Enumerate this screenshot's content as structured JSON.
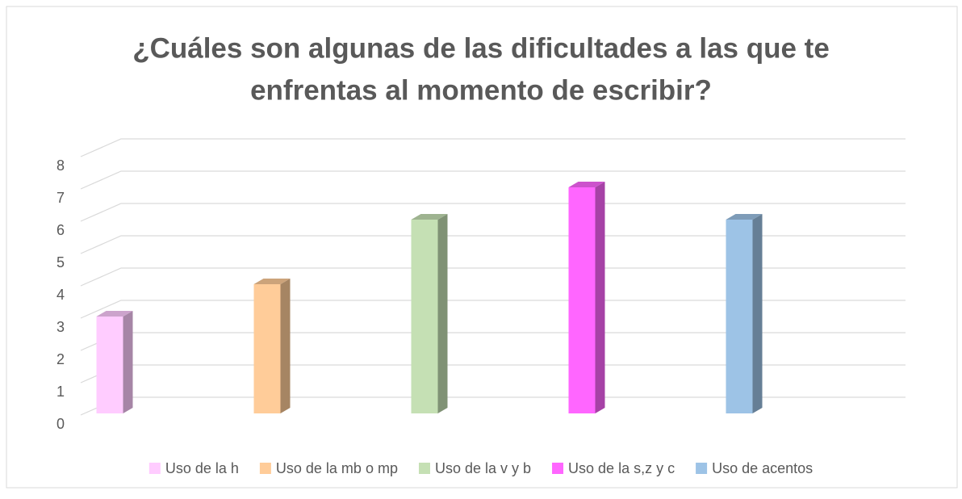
{
  "chart_data": {
    "type": "bar",
    "title": [
      "¿Cuáles son algunas de las dificultades a las que te",
      "enfrentas al momento de escribir?"
    ],
    "series": [
      {
        "name": "Uso de la h",
        "color": "#ffccff",
        "values": [
          3
        ]
      },
      {
        "name": "Uso de la mb o mp",
        "color": "#ffcc99",
        "values": [
          4
        ]
      },
      {
        "name": "Uso de la v y b",
        "color": "#c5e0b4",
        "values": [
          6
        ]
      },
      {
        "name": "Uso de la s,z y c",
        "color": "#ff66ff",
        "values": [
          7
        ]
      },
      {
        "name": "Uso de acentos",
        "color": "#9dc3e6",
        "values": [
          6
        ]
      }
    ],
    "ylim": [
      0,
      8
    ],
    "yticks": [
      0,
      1,
      2,
      3,
      4,
      5,
      6,
      7,
      8
    ],
    "grid": true,
    "legend": "bottom"
  }
}
